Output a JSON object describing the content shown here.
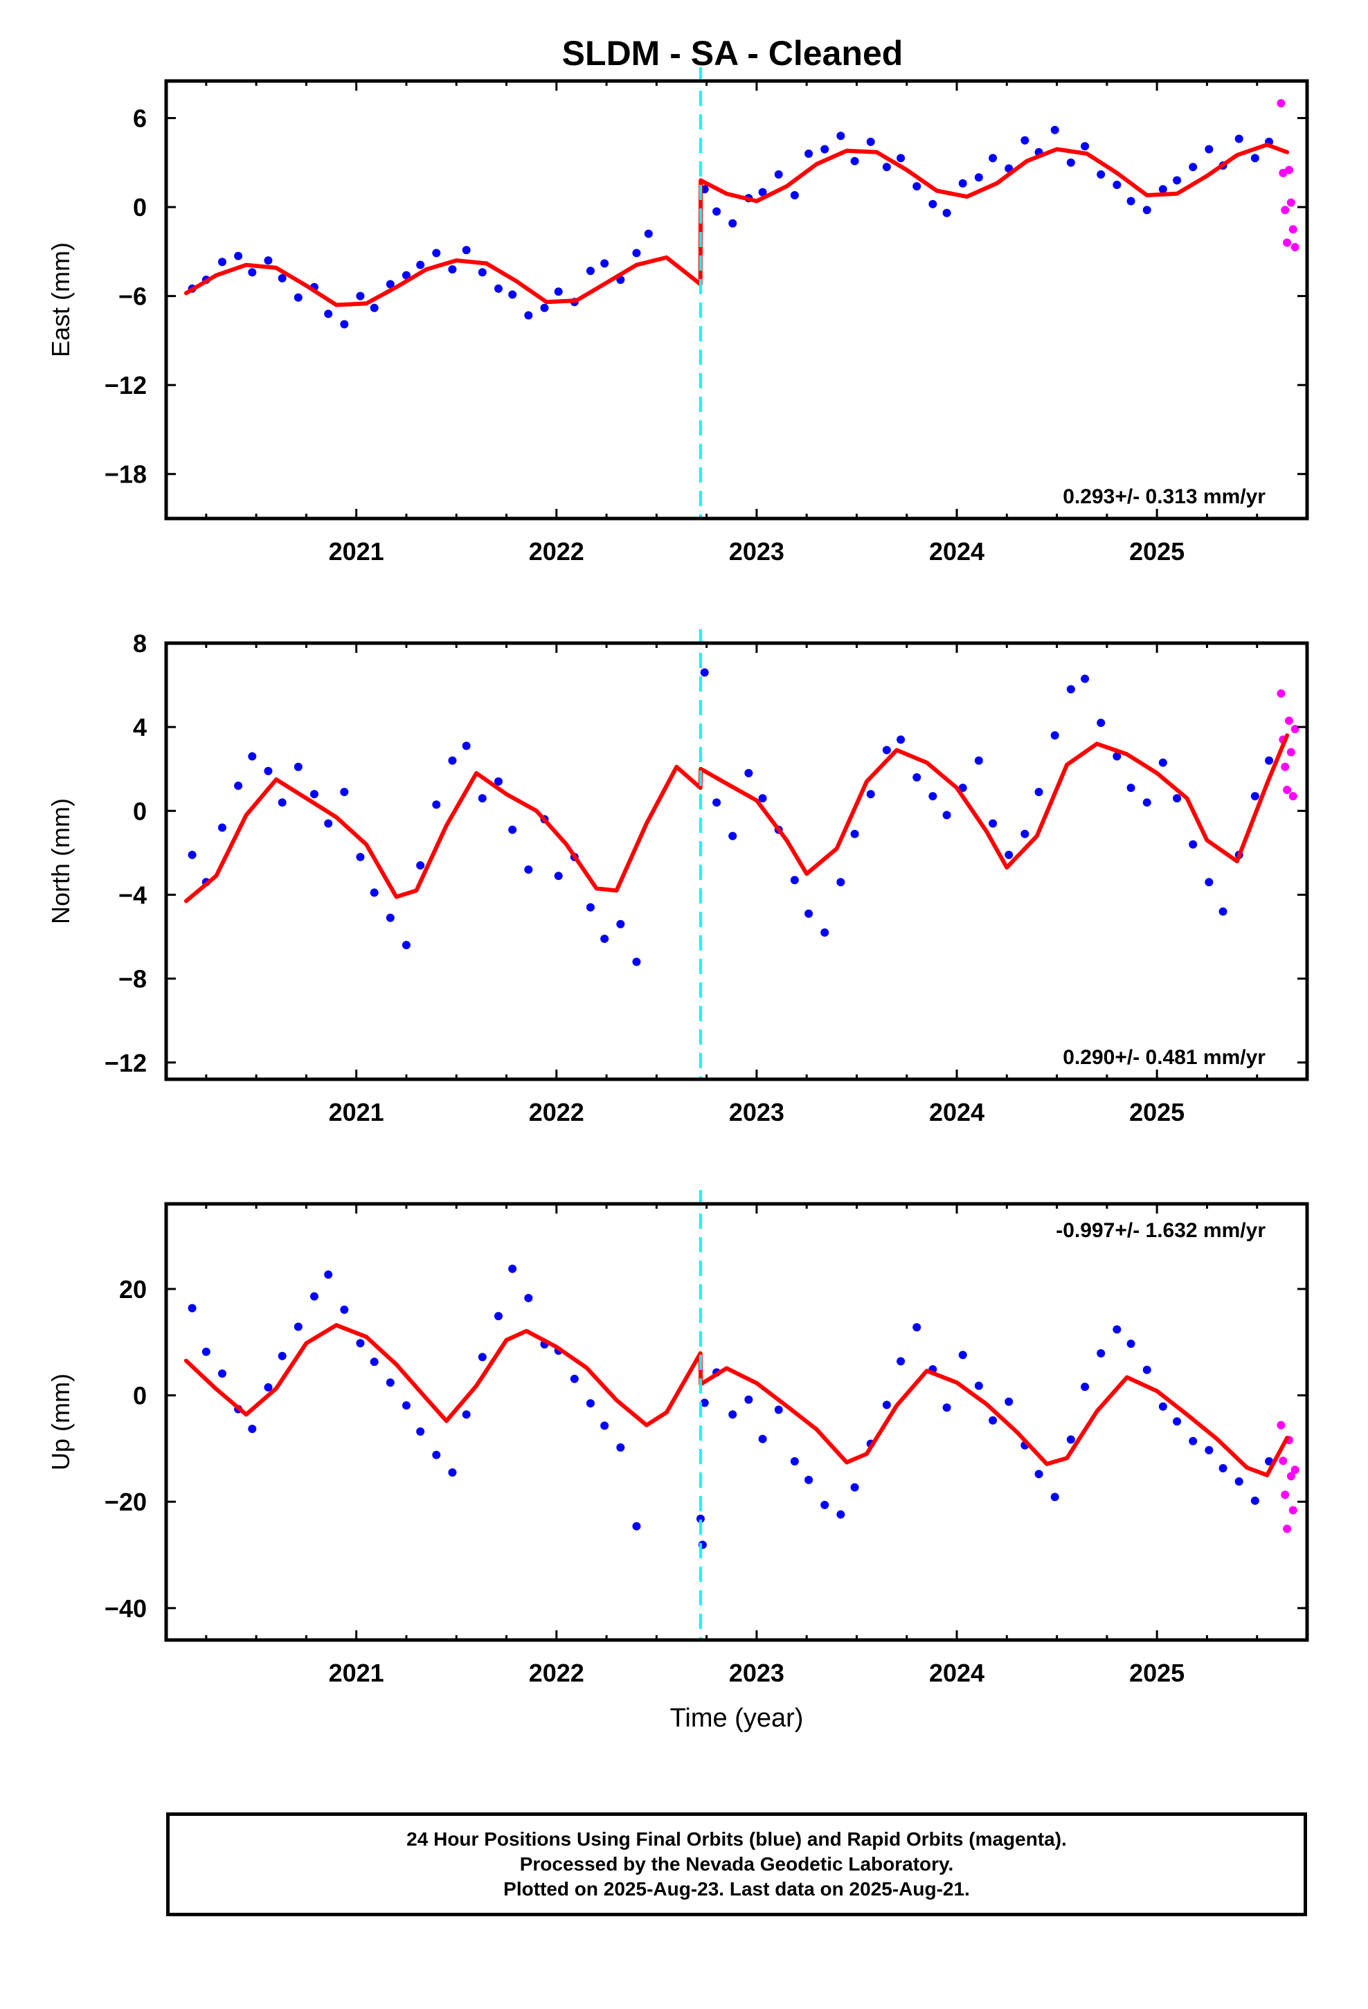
{
  "title": "SLDM  - SA - Cleaned",
  "colors": {
    "final_orbits": "#0000ff",
    "rapid_orbits": "#ff00ff",
    "model": "#ff0000",
    "offset_line": "#00ffff",
    "frame": "#000000"
  },
  "offset_epoch": 2022.72,
  "chart_data": [
    {
      "type": "scatter",
      "component": "east",
      "ylabel": "East (mm)",
      "xlabel": "",
      "xlim": [
        2020.05,
        2025.75
      ],
      "ylim": [
        -21,
        8.5
      ],
      "xticks": [
        2021,
        2022,
        2023,
        2024,
        2025
      ],
      "yticks": [
        -18,
        -12,
        -6,
        0,
        6
      ],
      "rate_text": "0.293+/- 0.313 mm/yr",
      "rate_position": "bottom-right",
      "model_curve": {
        "x": [
          2020.15,
          2020.3,
          2020.45,
          2020.6,
          2020.75,
          2020.9,
          2021.05,
          2021.2,
          2021.35,
          2021.5,
          2021.65,
          2021.8,
          2021.95,
          2022.1,
          2022.25,
          2022.4,
          2022.55,
          2022.719,
          2022.721,
          2022.85,
          2023.0,
          2023.15,
          2023.3,
          2023.45,
          2023.6,
          2023.75,
          2023.9,
          2024.05,
          2024.2,
          2024.35,
          2024.5,
          2024.65,
          2024.8,
          2024.95,
          2025.1,
          2025.25,
          2025.4,
          2025.55,
          2025.65
        ],
        "y": [
          -5.8,
          -4.6,
          -3.9,
          -4.1,
          -5.3,
          -6.6,
          -6.5,
          -5.4,
          -4.2,
          -3.6,
          -3.8,
          -5.0,
          -6.4,
          -6.3,
          -5.1,
          -3.9,
          -3.4,
          -5.2,
          1.8,
          0.9,
          0.4,
          1.4,
          2.9,
          3.8,
          3.7,
          2.5,
          1.1,
          0.7,
          1.6,
          3.1,
          3.9,
          3.6,
          2.3,
          0.8,
          0.9,
          2.1,
          3.5,
          4.2,
          3.7
        ]
      },
      "final_orbits": {
        "x": [
          2020.18,
          2020.25,
          2020.33,
          2020.41,
          2020.48,
          2020.56,
          2020.63,
          2020.71,
          2020.79,
          2020.86,
          2020.94,
          2021.02,
          2021.09,
          2021.17,
          2021.25,
          2021.32,
          2021.4,
          2021.48,
          2021.55,
          2021.63,
          2021.71,
          2021.78,
          2021.86,
          2021.94,
          2022.01,
          2022.09,
          2022.17,
          2022.24,
          2022.32,
          2022.4,
          2022.46,
          2022.74,
          2022.8,
          2022.88,
          2022.96,
          2023.03,
          2023.11,
          2023.19,
          2023.26,
          2023.34,
          2023.42,
          2023.49,
          2023.57,
          2023.65,
          2023.72,
          2023.8,
          2023.88,
          2023.95,
          2024.03,
          2024.11,
          2024.18,
          2024.26,
          2024.34,
          2024.41,
          2024.49,
          2024.57,
          2024.64,
          2024.72,
          2024.8,
          2024.87,
          2024.95,
          2025.03,
          2025.1,
          2025.18,
          2025.26,
          2025.33,
          2025.41,
          2025.49,
          2025.56
        ],
        "y": [
          -5.5,
          -4.9,
          -3.7,
          -3.3,
          -4.4,
          -3.6,
          -4.8,
          -6.1,
          -5.4,
          -7.2,
          -7.9,
          -6.0,
          -6.8,
          -5.2,
          -4.6,
          -3.9,
          -3.1,
          -4.2,
          -2.9,
          -4.4,
          -5.5,
          -5.9,
          -7.3,
          -6.8,
          -5.7,
          -6.4,
          -4.3,
          -3.8,
          -4.9,
          -3.1,
          -1.8,
          1.2,
          -0.3,
          -1.1,
          0.6,
          1.0,
          2.2,
          0.8,
          3.6,
          3.9,
          4.8,
          3.1,
          4.4,
          2.7,
          3.3,
          1.4,
          0.2,
          -0.4,
          1.6,
          2.0,
          3.3,
          2.6,
          4.5,
          3.7,
          5.2,
          3.0,
          4.1,
          2.2,
          1.5,
          0.4,
          -0.2,
          1.2,
          1.8,
          2.7,
          3.9,
          2.8,
          4.6,
          3.3,
          4.4
        ]
      },
      "rapid_orbits": {
        "x": [
          2025.62,
          2025.63,
          2025.64,
          2025.65,
          2025.66,
          2025.67,
          2025.68,
          2025.69
        ],
        "y": [
          7.0,
          2.3,
          -0.2,
          -2.4,
          2.5,
          0.3,
          -1.5,
          -2.7
        ]
      }
    },
    {
      "type": "scatter",
      "component": "north",
      "ylabel": "North (mm)",
      "xlabel": "",
      "xlim": [
        2020.05,
        2025.75
      ],
      "ylim": [
        -12.8,
        8
      ],
      "xticks": [
        2021,
        2022,
        2023,
        2024,
        2025
      ],
      "yticks": [
        -12,
        -8,
        -4,
        0,
        4,
        8
      ],
      "rate_text": "0.290+/- 0.481 mm/yr",
      "rate_position": "bottom-right",
      "model_curve": {
        "x": [
          2020.15,
          2020.3,
          2020.45,
          2020.6,
          2020.75,
          2020.9,
          2021.05,
          2021.2,
          2021.3,
          2021.45,
          2021.6,
          2021.75,
          2021.9,
          2022.05,
          2022.2,
          2022.3,
          2022.45,
          2022.6,
          2022.719,
          2022.721,
          2022.85,
          2023.0,
          2023.15,
          2023.25,
          2023.4,
          2023.55,
          2023.7,
          2023.85,
          2024.0,
          2024.15,
          2024.25,
          2024.4,
          2024.55,
          2024.7,
          2024.85,
          2025.0,
          2025.15,
          2025.25,
          2025.4,
          2025.55,
          2025.65
        ],
        "y": [
          -4.3,
          -3.1,
          -0.2,
          1.5,
          0.6,
          -0.3,
          -1.6,
          -4.1,
          -3.8,
          -0.7,
          1.8,
          0.8,
          0.0,
          -1.6,
          -3.7,
          -3.8,
          -0.6,
          2.1,
          1.1,
          2.0,
          1.3,
          0.5,
          -1.4,
          -3.0,
          -1.8,
          1.4,
          2.9,
          2.3,
          1.1,
          -1.0,
          -2.7,
          -1.2,
          2.2,
          3.2,
          2.7,
          1.8,
          0.6,
          -1.4,
          -2.4,
          1.3,
          3.6
        ]
      },
      "final_orbits": {
        "x": [
          2020.18,
          2020.25,
          2020.33,
          2020.41,
          2020.48,
          2020.56,
          2020.63,
          2020.71,
          2020.79,
          2020.86,
          2020.94,
          2021.02,
          2021.09,
          2021.17,
          2021.25,
          2021.32,
          2021.4,
          2021.48,
          2021.55,
          2021.63,
          2021.71,
          2021.78,
          2021.86,
          2021.94,
          2022.01,
          2022.09,
          2022.17,
          2022.24,
          2022.32,
          2022.4,
          2022.74,
          2022.8,
          2022.88,
          2022.96,
          2023.03,
          2023.11,
          2023.19,
          2023.26,
          2023.34,
          2023.42,
          2023.49,
          2023.57,
          2023.65,
          2023.72,
          2023.8,
          2023.88,
          2023.95,
          2024.03,
          2024.11,
          2024.18,
          2024.26,
          2024.34,
          2024.41,
          2024.49,
          2024.57,
          2024.64,
          2024.72,
          2024.8,
          2024.87,
          2024.95,
          2025.03,
          2025.1,
          2025.18,
          2025.26,
          2025.33,
          2025.41,
          2025.49,
          2025.56
        ],
        "y": [
          -2.1,
          -3.4,
          -0.8,
          1.2,
          2.6,
          1.9,
          0.4,
          2.1,
          0.8,
          -0.6,
          0.9,
          -2.2,
          -3.9,
          -5.1,
          -6.4,
          -2.6,
          0.3,
          2.4,
          3.1,
          0.6,
          1.4,
          -0.9,
          -2.8,
          -0.4,
          -3.1,
          -2.2,
          -4.6,
          -6.1,
          -5.4,
          -7.2,
          6.6,
          0.4,
          -1.2,
          1.8,
          0.6,
          -0.9,
          -3.3,
          -4.9,
          -5.8,
          -3.4,
          -1.1,
          0.8,
          2.9,
          3.4,
          1.6,
          0.7,
          -0.2,
          1.1,
          2.4,
          -0.6,
          -2.1,
          -1.1,
          0.9,
          3.6,
          5.8,
          6.3,
          4.2,
          2.6,
          1.1,
          0.4,
          2.3,
          0.6,
          -1.6,
          -3.4,
          -4.8,
          -2.1,
          0.7,
          2.4
        ]
      },
      "rapid_orbits": {
        "x": [
          2025.62,
          2025.63,
          2025.64,
          2025.65,
          2025.66,
          2025.67,
          2025.68,
          2025.69
        ],
        "y": [
          5.6,
          3.4,
          2.1,
          1.0,
          4.3,
          2.8,
          0.7,
          3.9
        ]
      }
    },
    {
      "type": "scatter",
      "component": "up",
      "ylabel": "Up (mm)",
      "xlabel": "Time (year)",
      "xlim": [
        2020.05,
        2025.75
      ],
      "ylim": [
        -46,
        36
      ],
      "xticks": [
        2021,
        2022,
        2023,
        2024,
        2025
      ],
      "yticks": [
        -40,
        -20,
        0,
        20
      ],
      "rate_text": "-0.997+/- 1.632 mm/yr",
      "rate_position": "top-right",
      "model_curve": {
        "x": [
          2020.15,
          2020.3,
          2020.45,
          2020.6,
          2020.75,
          2020.9,
          2021.05,
          2021.2,
          2021.35,
          2021.45,
          2021.6,
          2021.75,
          2021.85,
          2022.0,
          2022.15,
          2022.3,
          2022.45,
          2022.55,
          2022.719,
          2022.721,
          2022.85,
          2023.0,
          2023.15,
          2023.3,
          2023.45,
          2023.55,
          2023.7,
          2023.85,
          2024.0,
          2024.15,
          2024.3,
          2024.45,
          2024.55,
          2024.7,
          2024.85,
          2025.0,
          2025.15,
          2025.3,
          2025.45,
          2025.55,
          2025.65
        ],
        "y": [
          6.5,
          1.2,
          -3.6,
          1.3,
          9.8,
          13.2,
          11.0,
          5.8,
          -0.6,
          -4.8,
          1.8,
          10.4,
          12.1,
          9.1,
          5.2,
          -0.9,
          -5.6,
          -3.2,
          7.9,
          2.1,
          5.1,
          2.3,
          -2.0,
          -6.4,
          -12.6,
          -11.0,
          -1.9,
          4.6,
          2.4,
          -1.7,
          -6.9,
          -12.9,
          -11.8,
          -3.0,
          3.4,
          0.8,
          -3.6,
          -8.2,
          -13.6,
          -15.0,
          -8.0
        ]
      },
      "final_orbits": {
        "x": [
          2020.18,
          2020.25,
          2020.33,
          2020.41,
          2020.48,
          2020.56,
          2020.63,
          2020.71,
          2020.79,
          2020.86,
          2020.94,
          2021.02,
          2021.09,
          2021.17,
          2021.25,
          2021.32,
          2021.4,
          2021.48,
          2021.55,
          2021.63,
          2021.71,
          2021.78,
          2021.86,
          2021.94,
          2022.01,
          2022.09,
          2022.17,
          2022.24,
          2022.32,
          2022.4,
          2022.72,
          2022.73,
          2022.74,
          2022.8,
          2022.88,
          2022.96,
          2023.03,
          2023.11,
          2023.19,
          2023.26,
          2023.34,
          2023.42,
          2023.49,
          2023.57,
          2023.65,
          2023.72,
          2023.8,
          2023.88,
          2023.95,
          2024.03,
          2024.11,
          2024.18,
          2024.26,
          2024.34,
          2024.41,
          2024.49,
          2024.57,
          2024.64,
          2024.72,
          2024.8,
          2024.87,
          2024.95,
          2025.03,
          2025.1,
          2025.18,
          2025.26,
          2025.33,
          2025.41,
          2025.49,
          2025.56
        ],
        "y": [
          16.4,
          8.2,
          4.1,
          -2.6,
          -6.3,
          1.5,
          7.4,
          12.9,
          18.6,
          22.7,
          16.1,
          9.8,
          6.3,
          2.4,
          -1.9,
          -6.8,
          -11.2,
          -14.5,
          -3.6,
          7.2,
          14.9,
          23.8,
          18.3,
          9.6,
          8.4,
          3.1,
          -1.5,
          -5.7,
          -9.8,
          -24.6,
          -23.2,
          -28.1,
          -1.4,
          4.3,
          -3.6,
          -0.8,
          -8.2,
          -2.7,
          -12.4,
          -15.9,
          -20.6,
          -22.4,
          -17.3,
          -9.1,
          -1.8,
          6.4,
          12.8,
          4.9,
          -2.3,
          7.6,
          1.8,
          -4.7,
          -1.2,
          -9.4,
          -14.8,
          -19.1,
          -8.3,
          1.6,
          7.9,
          12.4,
          9.7,
          4.8,
          -2.1,
          -4.9,
          -8.6,
          -10.3,
          -13.7,
          -16.2,
          -19.8,
          -12.4
        ]
      },
      "rapid_orbits": {
        "x": [
          2025.62,
          2025.63,
          2025.64,
          2025.65,
          2025.66,
          2025.67,
          2025.68,
          2025.69
        ],
        "y": [
          -5.6,
          -12.3,
          -18.7,
          -25.1,
          -8.4,
          -15.2,
          -21.6,
          -14.0
        ]
      }
    }
  ],
  "footer": {
    "lines": [
      "24 Hour Positions Using Final Orbits (blue) and Rapid Orbits (magenta).",
      "Processed by the Nevada Geodetic Laboratory.",
      "Plotted on 2025-Aug-23. Last data on 2025-Aug-21."
    ]
  }
}
